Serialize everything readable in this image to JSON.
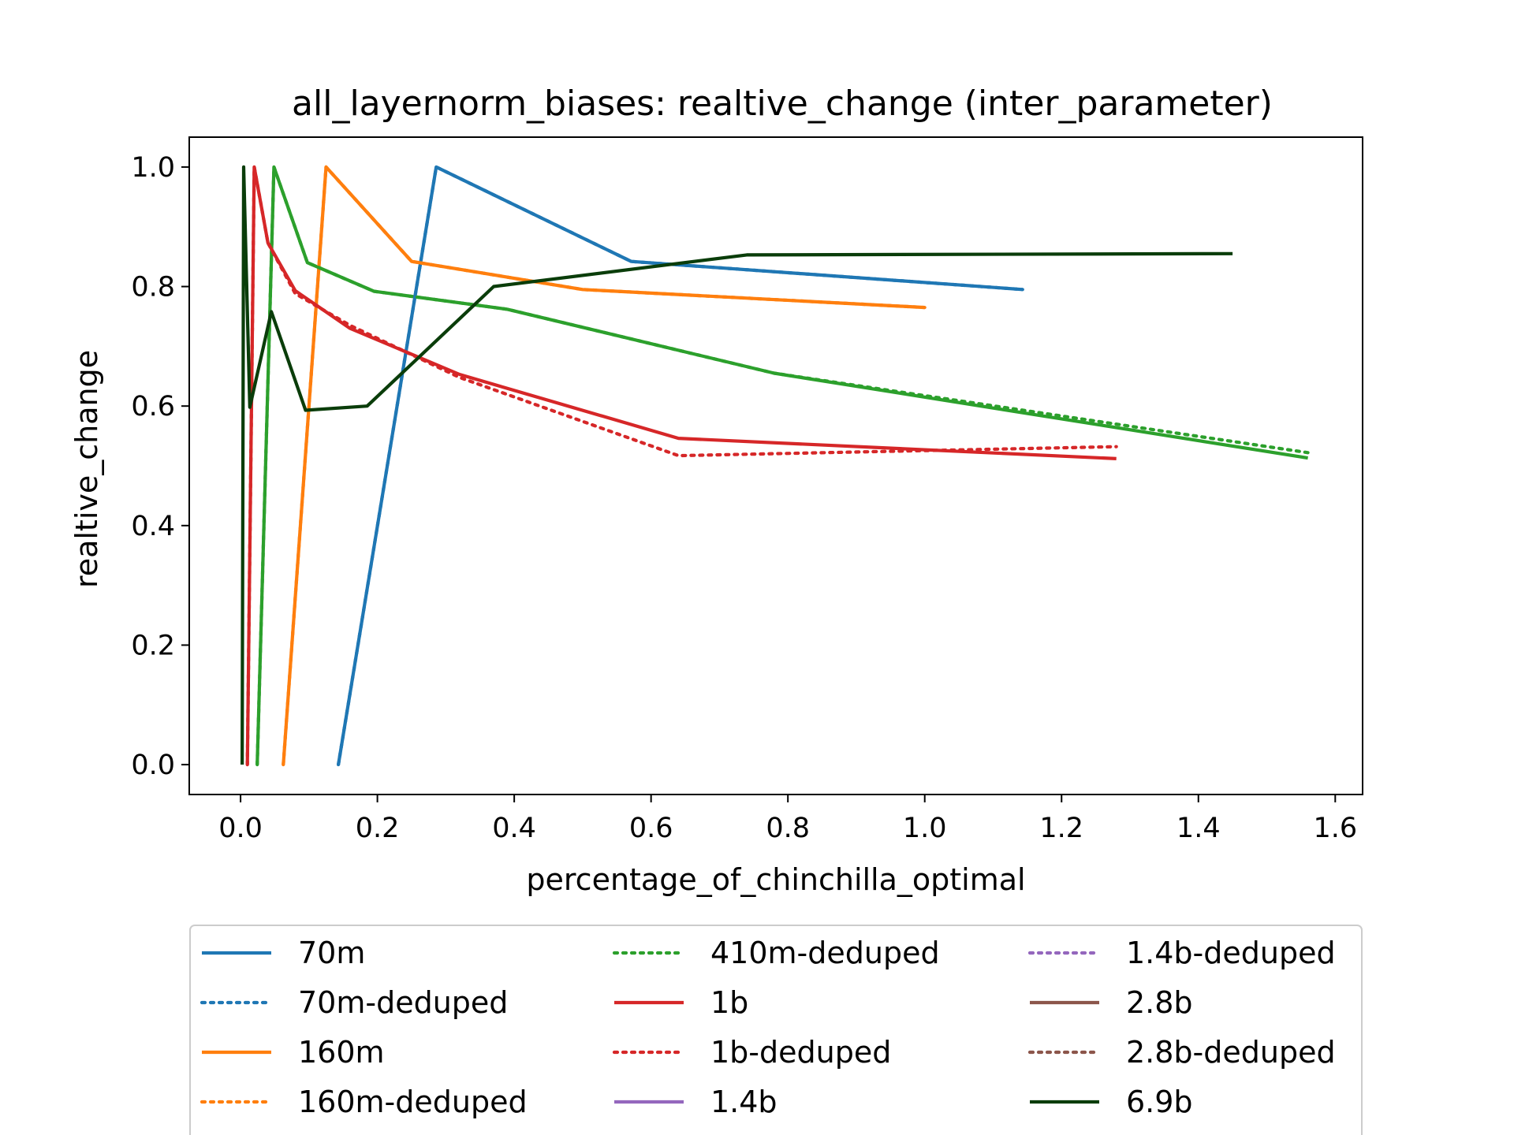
{
  "chart_data": {
    "type": "line",
    "title": "all_layernorm_biases: realtive_change (inter_parameter)",
    "xlabel": "percentage_of_chinchilla_optimal",
    "ylabel": "realtive_change",
    "xlim": [
      -0.075,
      1.64
    ],
    "ylim": [
      -0.05,
      1.05
    ],
    "xticks": [
      "0.0",
      "0.2",
      "0.4",
      "0.6",
      "0.8",
      "1.0",
      "1.2",
      "1.4",
      "1.6"
    ],
    "yticks": [
      "0.0",
      "0.2",
      "0.4",
      "0.6",
      "0.8",
      "1.0"
    ],
    "grid": false,
    "legend_position": "below",
    "series": [
      {
        "name": "70m",
        "color": "#1f77b4",
        "dash": "solid",
        "x": [
          0.143,
          0.286,
          0.571,
          1.143
        ],
        "y": [
          0.0,
          1.0,
          0.842,
          0.795
        ]
      },
      {
        "name": "70m-deduped",
        "color": "#1f77b4",
        "dash": "dotted",
        "x": [
          0.143,
          0.286,
          0.571,
          1.143
        ],
        "y": [
          0.0,
          1.0,
          0.842,
          0.795
        ]
      },
      {
        "name": "160m",
        "color": "#ff7f0e",
        "dash": "solid",
        "x": [
          0.0625,
          0.125,
          0.25,
          0.5,
          1.0
        ],
        "y": [
          0.0,
          1.0,
          0.842,
          0.795,
          0.765
        ]
      },
      {
        "name": "160m-deduped",
        "color": "#ff7f0e",
        "dash": "dotted",
        "x": [
          0.0625,
          0.125,
          0.25,
          0.5,
          1.0
        ],
        "y": [
          0.0,
          1.0,
          0.842,
          0.795,
          0.765
        ]
      },
      {
        "name": "410m-deduped",
        "color": "#2ca02c",
        "dash": "dotted",
        "x": [
          0.0244,
          0.0488,
          0.0976,
          0.195,
          0.39,
          0.78,
          1.56
        ],
        "y": [
          0.0,
          1.0,
          0.84,
          0.792,
          0.762,
          0.655,
          0.522
        ]
      },
      {
        "name": "1b",
        "color": "#d62728",
        "dash": "solid",
        "x": [
          0.01,
          0.02,
          0.04,
          0.08,
          0.16,
          0.32,
          0.64,
          1.28
        ],
        "y": [
          0.0,
          1.0,
          0.873,
          0.793,
          0.73,
          0.653,
          0.546,
          0.512
        ]
      },
      {
        "name": "1b-deduped",
        "color": "#d62728",
        "dash": "dotted",
        "x": [
          0.01,
          0.02,
          0.04,
          0.08,
          0.16,
          0.32,
          0.64,
          1.28
        ],
        "y": [
          0.0,
          1.0,
          0.873,
          0.788,
          0.735,
          0.648,
          0.517,
          0.532
        ]
      },
      {
        "name": "1.4b",
        "color": "#9467bd",
        "dash": "solid",
        "x": [],
        "y": []
      },
      {
        "name": "1.4b-deduped",
        "color": "#9467bd",
        "dash": "dotted",
        "x": [],
        "y": []
      },
      {
        "name": "2.8b",
        "color": "#8c564b",
        "dash": "solid",
        "x": [],
        "y": []
      },
      {
        "name": "2.8b-deduped",
        "color": "#8c564b",
        "dash": "dotted",
        "x": [],
        "y": []
      },
      {
        "name": "6.9b",
        "color": "#0a3d0a",
        "dash": "solid",
        "x": [
          0.0023,
          0.0045,
          0.0135,
          0.045,
          0.095,
          0.185,
          0.37,
          0.74,
          1.45
        ],
        "y": [
          0.0,
          1.0,
          0.598,
          0.758,
          0.593,
          0.6,
          0.8,
          0.853,
          0.855
        ]
      }
    ],
    "extra_lines": [
      {
        "series_ref": "410m",
        "color": "#2ca02c",
        "dash": "solid",
        "x": [
          0.0244,
          0.0488,
          0.0976,
          0.195,
          0.39,
          0.78,
          1.56
        ],
        "y": [
          0.0,
          1.0,
          0.84,
          0.792,
          0.762,
          0.655,
          0.513
        ]
      }
    ]
  }
}
